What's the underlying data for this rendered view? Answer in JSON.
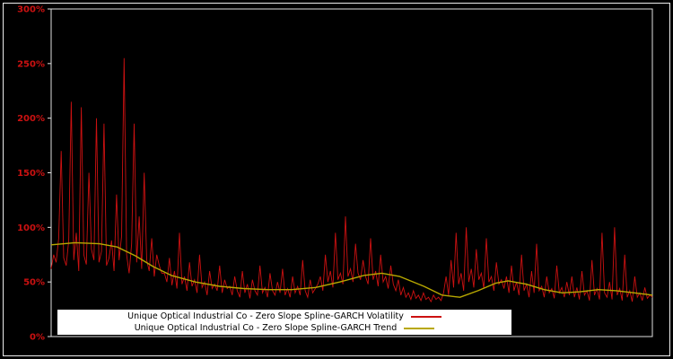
{
  "figure": {
    "background": "#000000",
    "frame_color": "#e0e0e0"
  },
  "legend": {
    "background": "#ffffff",
    "text_color": "#000000",
    "position": "bottom-center"
  },
  "chart_data": {
    "type": "line",
    "title": "",
    "xlabel": "",
    "ylabel": "",
    "grid": false,
    "ylim": [
      0,
      300
    ],
    "axis_label_color": "#cc1111",
    "frame_color": "#e0e0e0",
    "yticks": [
      {
        "value": 0,
        "label": "0%"
      },
      {
        "value": 50,
        "label": "50%"
      },
      {
        "value": 100,
        "label": "100%"
      },
      {
        "value": 150,
        "label": "150%"
      },
      {
        "value": 200,
        "label": "200%"
      },
      {
        "value": 250,
        "label": "250%"
      },
      {
        "value": 300,
        "label": "300%"
      }
    ],
    "series": [
      {
        "name": "Unique Optical Industrial Co - Zero Slope Spline-GARCH Volatility",
        "color": "#cc1111",
        "style": "noisy",
        "unit": "%",
        "values": [
          62,
          75,
          68,
          90,
          170,
          72,
          65,
          88,
          215,
          70,
          95,
          60,
          210,
          75,
          66,
          150,
          80,
          70,
          200,
          68,
          78,
          195,
          65,
          72,
          88,
          60,
          130,
          70,
          92,
          255,
          75,
          58,
          85,
          195,
          68,
          110,
          62,
          150,
          70,
          60,
          90,
          55,
          75,
          65,
          58,
          58,
          50,
          72,
          47,
          60,
          44,
          95,
          48,
          55,
          42,
          68,
          46,
          52,
          40,
          75,
          45,
          50,
          38,
          60,
          44,
          48,
          42,
          65,
          40,
          52,
          44,
          46,
          38,
          55,
          42,
          36,
          60,
          40,
          48,
          35,
          52,
          42,
          38,
          65,
          40,
          45,
          36,
          58,
          42,
          38,
          50,
          40,
          62,
          38,
          44,
          36,
          55,
          40,
          46,
          38,
          70,
          42,
          36,
          52,
          40,
          44,
          48,
          55,
          42,
          75,
          50,
          60,
          45,
          95,
          52,
          58,
          48,
          110,
          55,
          62,
          50,
          85,
          58,
          52,
          70,
          55,
          48,
          90,
          52,
          60,
          46,
          75,
          50,
          55,
          44,
          65,
          48,
          42,
          52,
          38,
          45,
          36,
          40,
          34,
          42,
          35,
          38,
          33,
          40,
          34,
          36,
          32,
          38,
          34,
          36,
          33,
          40,
          55,
          38,
          70,
          45,
          95,
          48,
          58,
          42,
          100,
          50,
          62,
          45,
          80,
          52,
          58,
          44,
          90,
          50,
          55,
          42,
          68,
          48,
          52,
          44,
          55,
          40,
          65,
          42,
          50,
          38,
          75,
          42,
          48,
          36,
          60,
          40,
          85,
          42,
          46,
          36,
          55,
          40,
          44,
          35,
          65,
          40,
          45,
          36,
          50,
          38,
          55,
          36,
          45,
          34,
          60,
          38,
          42,
          33,
          70,
          38,
          44,
          34,
          95,
          40,
          36,
          50,
          34,
          100,
          38,
          44,
          33,
          75,
          36,
          42,
          32,
          55,
          36,
          40,
          33,
          45,
          35,
          38,
          36
        ]
      },
      {
        "name": "Unique Optical Industrial Co - Zero Slope Spline-GARCH Trend",
        "color": "#b8a800",
        "style": "smooth",
        "unit": "%",
        "points": [
          {
            "x": 0.0,
            "y": 84
          },
          {
            "x": 0.04,
            "y": 86
          },
          {
            "x": 0.08,
            "y": 85
          },
          {
            "x": 0.11,
            "y": 82
          },
          {
            "x": 0.14,
            "y": 74
          },
          {
            "x": 0.17,
            "y": 64
          },
          {
            "x": 0.2,
            "y": 56
          },
          {
            "x": 0.24,
            "y": 50
          },
          {
            "x": 0.28,
            "y": 46
          },
          {
            "x": 0.32,
            "y": 44
          },
          {
            "x": 0.36,
            "y": 43
          },
          {
            "x": 0.4,
            "y": 43
          },
          {
            "x": 0.44,
            "y": 45
          },
          {
            "x": 0.48,
            "y": 50
          },
          {
            "x": 0.52,
            "y": 56
          },
          {
            "x": 0.55,
            "y": 58
          },
          {
            "x": 0.58,
            "y": 55
          },
          {
            "x": 0.62,
            "y": 46
          },
          {
            "x": 0.65,
            "y": 38
          },
          {
            "x": 0.68,
            "y": 36
          },
          {
            "x": 0.71,
            "y": 42
          },
          {
            "x": 0.74,
            "y": 49
          },
          {
            "x": 0.76,
            "y": 51
          },
          {
            "x": 0.79,
            "y": 48
          },
          {
            "x": 0.82,
            "y": 43
          },
          {
            "x": 0.85,
            "y": 40
          },
          {
            "x": 0.88,
            "y": 41
          },
          {
            "x": 0.91,
            "y": 43
          },
          {
            "x": 0.94,
            "y": 42
          },
          {
            "x": 0.97,
            "y": 40
          },
          {
            "x": 1.0,
            "y": 38
          }
        ]
      }
    ]
  }
}
